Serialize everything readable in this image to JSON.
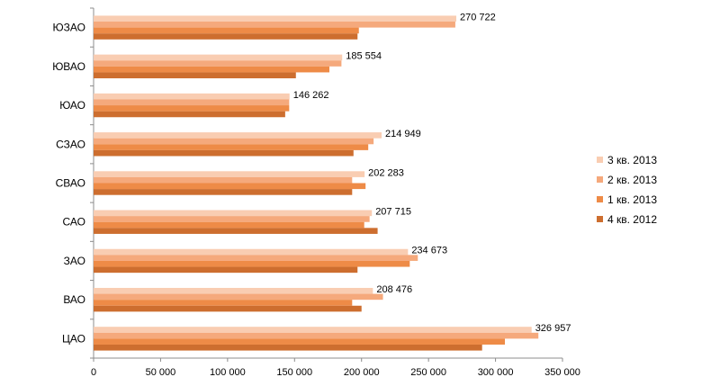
{
  "chart_data": {
    "type": "bar",
    "orientation": "horizontal",
    "title": "",
    "xlabel": "",
    "ylabel": "",
    "categories": [
      "ЮЗАО",
      "ЮВАО",
      "ЮАО",
      "СЗАО",
      "СВАО",
      "САО",
      "ЗАО",
      "ВАО",
      "ЦАО"
    ],
    "series": [
      {
        "name": "3 кв. 2013",
        "color": "#f9cdb2",
        "values": [
          270722,
          185554,
          146262,
          214949,
          202283,
          207715,
          234673,
          208476,
          326957
        ]
      },
      {
        "name": "2 кв. 2013",
        "color": "#f5a97c",
        "values": [
          270000,
          185000,
          146000,
          209000,
          193000,
          206000,
          242000,
          216000,
          332000
        ]
      },
      {
        "name": "1 кв. 2013",
        "color": "#ee8b47",
        "values": [
          198000,
          176000,
          146000,
          205000,
          203000,
          202000,
          236000,
          193000,
          307000
        ]
      },
      {
        "name": "4 кв. 2012",
        "color": "#cd6e2f",
        "values": [
          197000,
          151000,
          143000,
          194000,
          193000,
          212000,
          197000,
          200000,
          290000
        ]
      }
    ],
    "data_labels": [
      "270 722",
      "185 554",
      "146 262",
      "214 949",
      "202 283",
      "207 715",
      "234 673",
      "208 476",
      "326 957"
    ],
    "xlim": [
      0,
      350000
    ],
    "xticks": [
      0,
      50000,
      100000,
      150000,
      200000,
      250000,
      300000,
      350000
    ],
    "xtick_labels": [
      "0",
      "50 000",
      "100 000",
      "150 000",
      "200 000",
      "250 000",
      "300 000",
      "350 000"
    ],
    "grid": false,
    "legend_position": "right"
  }
}
